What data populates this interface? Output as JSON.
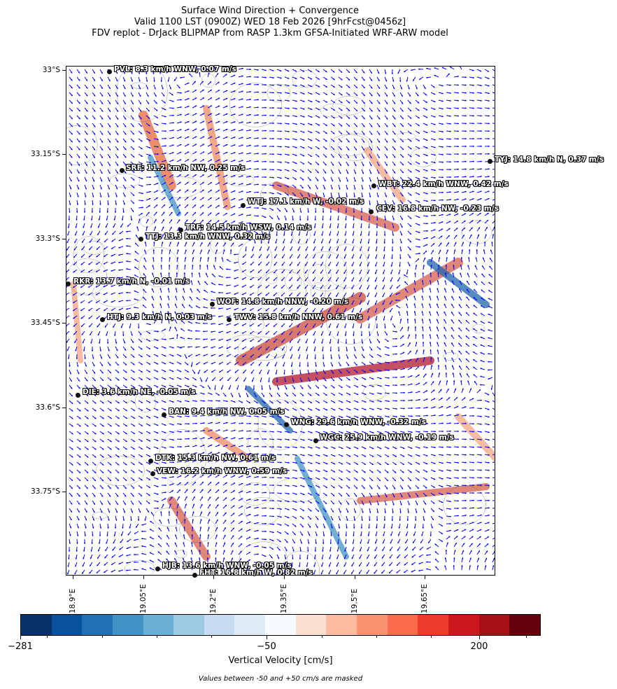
{
  "title": {
    "line1": "Surface Wind Direction + Convergence",
    "line2": "Valid 1100 LST (0900Z) WED 18 Feb 2026 [9hrFcst@0456z]",
    "line3": "FDV replot - DrJack BLIPMAP from RASP 1.3km GFSA-Initiated WRF-ARW model"
  },
  "axes": {
    "y_labels": [
      "33°S",
      "33.15°S",
      "33.3°S",
      "33.45°S",
      "33.6°S",
      "33.75°S"
    ],
    "x_labels": [
      "18.9°E",
      "19.05°E",
      "19.2°E",
      "19.35°E",
      "19.5°E",
      "19.65°E"
    ]
  },
  "stations": [
    {
      "code": "PVL",
      "text": "PVL: 8.3 km/h WNW, 0.07 m/s"
    },
    {
      "code": "TYJ",
      "text": "TYJ: 14.8 km/h N, 0.37 m/s"
    },
    {
      "code": "SRF",
      "text": "SRF: 11.2 km/h NW, 0.25 m/s"
    },
    {
      "code": "WBT",
      "text": "WBT: 22.4 km/h WNW, 0.42 m/s"
    },
    {
      "code": "WTJ",
      "text": "WTJ: 17.1 km/h W, -0.02 m/s"
    },
    {
      "code": "CEV",
      "text": "CEV: 16.8 km/h NW, -0.23 m/s"
    },
    {
      "code": "TRF",
      "text": "TRF: 14.5 km/h WSW, 0.14 m/s"
    },
    {
      "code": "TTJ",
      "text": "TTJ: 13.3 km/h WNW, 0.32 m/s"
    },
    {
      "code": "RKR",
      "text": "RKR: 13.7 km/h N, -0.01 m/s"
    },
    {
      "code": "WOF",
      "text": "WOF: 14.8 km/h NNW, -0.20 m/s"
    },
    {
      "code": "HTJ",
      "text": "HTJ: 9.3 km/h N, 0.03 m/s"
    },
    {
      "code": "TWV",
      "text": "TWV: 15.8 km/h NNW, 0.61 m/s"
    },
    {
      "code": "DIE",
      "text": "DIE: 3.6 km/h NE, -0.05 m/s"
    },
    {
      "code": "BAN",
      "text": "BAN: 9.4 km/h NW, 0.05 m/s"
    },
    {
      "code": "WNG",
      "text": "WNG: 29.6 km/h WNW, -0.32 m/s"
    },
    {
      "code": "WGC",
      "text": "WGC: 25.9 km/h WNW, -0.19 m/s"
    },
    {
      "code": "DTK",
      "text": "DTK: 15.3 km/h NW, 0.61 m/s"
    },
    {
      "code": "VEW",
      "text": "VEW: 16.2 km/h WNW, 0.59 m/s"
    },
    {
      "code": "HJB",
      "text": "HJB: 13.6 km/h WNW, -0.05 m/s"
    },
    {
      "code": "FHT",
      "text": "FHT: 16.8 km/h W, 0.82 m/s"
    }
  ],
  "colorbar": {
    "tick_labels": [
      "−281",
      "−50",
      "200"
    ],
    "label": "Vertical Velocity [cm/s]",
    "note": "Values between -50 and +50 cm/s are masked",
    "colors": [
      "#08306b",
      "#08519c",
      "#2171b5",
      "#4292c6",
      "#6baed6",
      "#9ecae1",
      "#c6dbef",
      "#deebf7",
      "#f7fbff",
      "#fee0d2",
      "#fcbba1",
      "#fc9272",
      "#fb6a4a",
      "#ef3b2c",
      "#cb181d",
      "#a50f15",
      "#67000d"
    ]
  },
  "colors": {
    "wind_vector": "#0000ff",
    "terrain_contour": "#555555"
  }
}
